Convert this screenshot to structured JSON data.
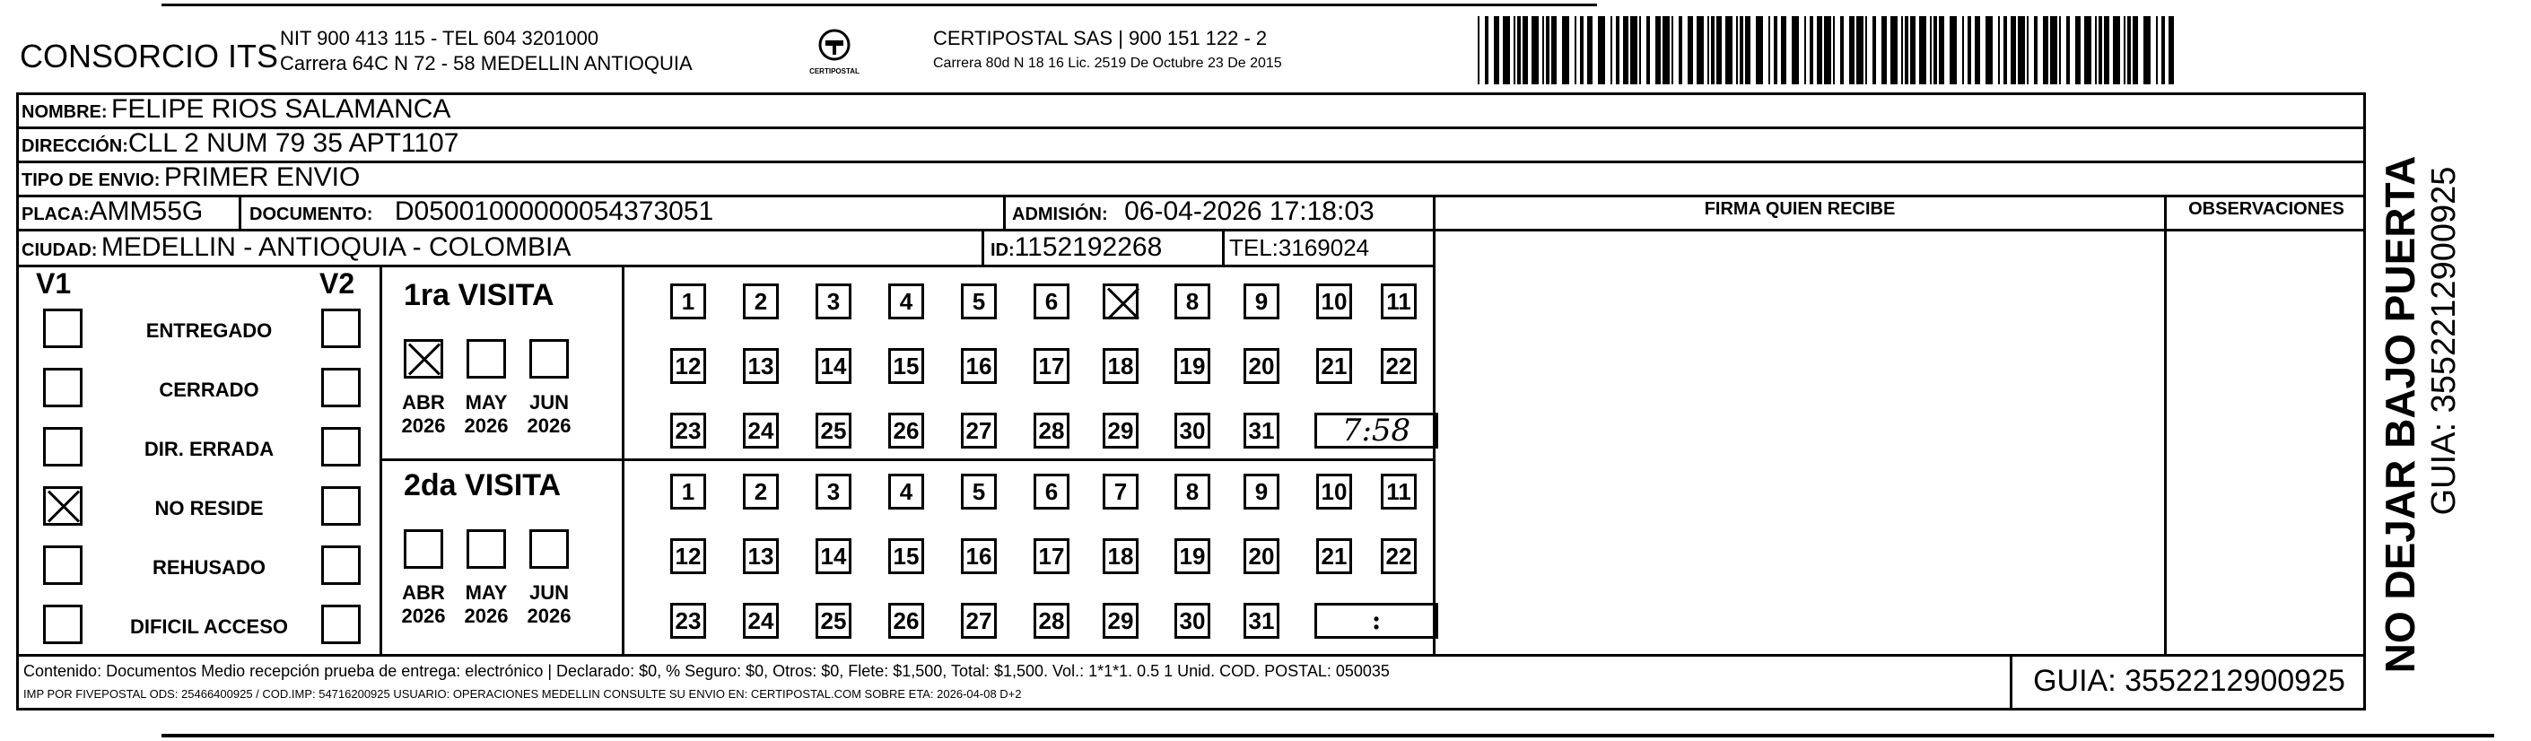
{
  "header": {
    "company": "CONSORCIO ITS",
    "company_line1": "NIT 900 413 115 - TEL 604 3201000",
    "company_line2": "Carrera 64C N 72 - 58 MEDELLIN ANTIOQUIA",
    "logo_text": "CERTIPOSTAL",
    "carrier_line1": "CERTIPOSTAL SAS | 900 151 122 - 2",
    "carrier_line2": "Carrera 80d N 18 16  Lic. 2519 De Octubre 23 De 2015"
  },
  "fields": {
    "nombre_label": "NOMBRE:",
    "nombre": "FELIPE RIOS SALAMANCA",
    "direccion_label": "DIRECCIÓN:",
    "direccion": "CLL 2 NUM 79 35 APT1107",
    "tipo_label": "TIPO DE ENVIO:",
    "tipo": "PRIMER ENVIO",
    "placa_label": "PLACA:",
    "placa": "AMM55G",
    "documento_label": "DOCUMENTO:",
    "documento": "D05001000000054373051",
    "admision_label": "ADMISIÓN:",
    "admision": "06-04-2026 17:18:03",
    "ciudad_label": "CIUDAD:",
    "ciudad": "MEDELLIN - ANTIOQUIA - COLOMBIA",
    "id_label": "ID:",
    "id": "1152192268",
    "tel_label": "TEL:",
    "tel": "3169024"
  },
  "columns": {
    "firma": "FIRMA QUIEN RECIBE",
    "observaciones": "OBSERVACIONES"
  },
  "status": {
    "v1": "V1",
    "v2": "V2",
    "reasons": [
      {
        "label": "ENTREGADO",
        "v1": false,
        "v2": false
      },
      {
        "label": "CERRADO",
        "v1": false,
        "v2": false
      },
      {
        "label": "DIR. ERRADA",
        "v1": false,
        "v2": false
      },
      {
        "label": "NO RESIDE",
        "v1": true,
        "v2": false
      },
      {
        "label": "REHUSADO",
        "v1": false,
        "v2": false
      },
      {
        "label": "DIFICIL ACCESO",
        "v1": false,
        "v2": false
      }
    ]
  },
  "visits": [
    {
      "title": "1ra VISITA",
      "months": [
        {
          "m": "ABR",
          "y": "2026",
          "checked": true
        },
        {
          "m": "MAY",
          "y": "2026",
          "checked": false
        },
        {
          "m": "JUN",
          "y": "2026",
          "checked": false
        }
      ],
      "checked_day": 7,
      "time": "7:58"
    },
    {
      "title": "2da VISITA",
      "months": [
        {
          "m": "ABR",
          "y": "2026",
          "checked": false
        },
        {
          "m": "MAY",
          "y": "2026",
          "checked": false
        },
        {
          "m": "JUN",
          "y": "2026",
          "checked": false
        }
      ],
      "checked_day": null,
      "time": ":"
    }
  ],
  "footer": {
    "line1": "Contenido: Documentos Medio recepción prueba de entrega: electrónico | Declarado: $0, % Seguro: $0, Otros: $0, Flete: $1,500, Total: $1,500. Vol.: 1*1*1. 0.5  1 Unid. COD. POSTAL: 050035",
    "line2": "IMP POR FIVEPOSTAL ODS: 25466400925 / COD.IMP: 54716200925 USUARIO: OPERACIONES MEDELLIN CONSULTE SU ENVIO EN: CERTIPOSTAL.COM SOBRE ETA: 2026-04-08 D+2",
    "guia": "GUIA: 3552212900925"
  },
  "side": {
    "warning": "NO DEJAR BAJO PUERTA",
    "guia": "GUIA: 3552212900925"
  }
}
